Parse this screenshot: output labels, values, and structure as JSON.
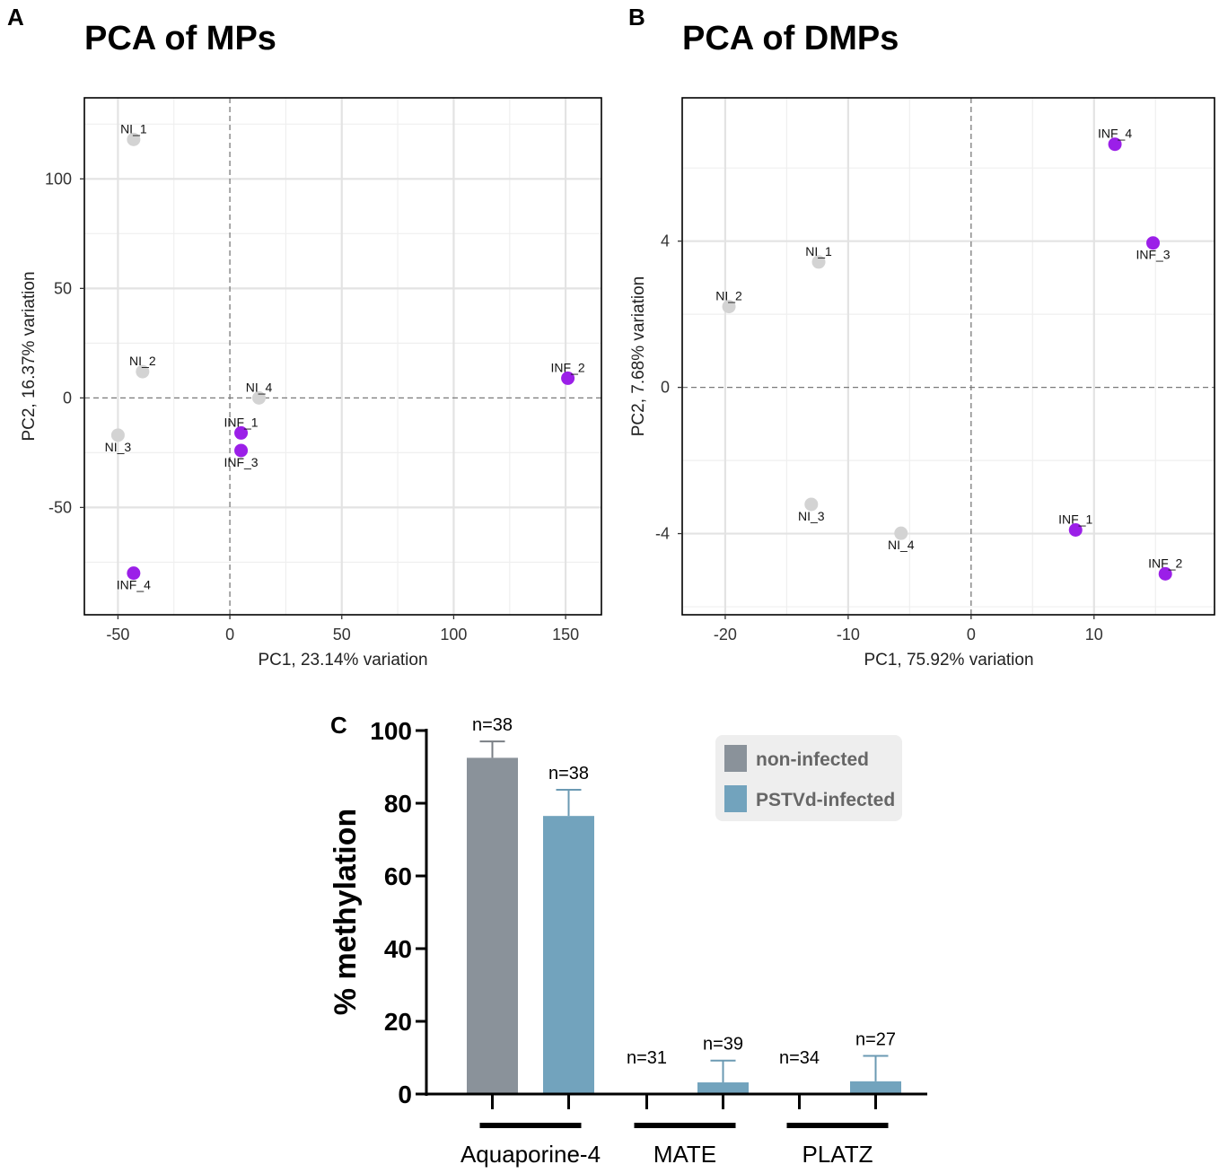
{
  "colors": {
    "non_infected_point": "#d3d3d3",
    "infected_point": "#9b1fe8",
    "non_infected_bar": "#8a929a",
    "infected_bar": "#72a3bd"
  },
  "chart_data": [
    {
      "panel": "A",
      "type": "scatter",
      "title": "PCA of MPs",
      "xlabel": "PC1, 23.14% variation",
      "ylabel": "PC2, 16.37% variation",
      "xlim": [
        -65,
        166
      ],
      "ylim": [
        -99,
        137
      ],
      "xticks": [
        -50,
        0,
        50,
        100,
        150
      ],
      "yticks": [
        -50,
        0,
        50,
        100
      ],
      "points": [
        {
          "label": "NI_1",
          "x": -43,
          "y": 118,
          "group": "non-infected",
          "label_pos": "above"
        },
        {
          "label": "NI_2",
          "x": -39,
          "y": 12,
          "group": "non-infected",
          "label_pos": "above"
        },
        {
          "label": "NI_3",
          "x": -50,
          "y": -17,
          "group": "non-infected",
          "label_pos": "below"
        },
        {
          "label": "NI_4",
          "x": 13,
          "y": 0,
          "group": "non-infected",
          "label_pos": "above"
        },
        {
          "label": "INF_1",
          "x": 5,
          "y": -16,
          "group": "infected",
          "label_pos": "above"
        },
        {
          "label": "INF_2",
          "x": 151,
          "y": 9,
          "group": "infected",
          "label_pos": "above"
        },
        {
          "label": "INF_3",
          "x": 5,
          "y": -24,
          "group": "infected",
          "label_pos": "below"
        },
        {
          "label": "INF_4",
          "x": -43,
          "y": -80,
          "group": "infected",
          "label_pos": "below"
        }
      ]
    },
    {
      "panel": "B",
      "type": "scatter",
      "title": "PCA of DMPs",
      "xlabel": "PC1, 75.92% variation",
      "ylabel": "PC2, 7.68% variation",
      "xlim": [
        -23.5,
        19.8
      ],
      "ylim": [
        -6.22,
        7.92
      ],
      "xticks": [
        -20,
        -10,
        0,
        10
      ],
      "yticks": [
        -4,
        0,
        4
      ],
      "points": [
        {
          "label": "NI_1",
          "x": -12.4,
          "y": 3.43,
          "group": "non-infected",
          "label_pos": "above"
        },
        {
          "label": "NI_2",
          "x": -19.7,
          "y": 2.21,
          "group": "non-infected",
          "label_pos": "above"
        },
        {
          "label": "NI_3",
          "x": -13.0,
          "y": -3.2,
          "group": "non-infected",
          "label_pos": "below"
        },
        {
          "label": "NI_4",
          "x": -5.7,
          "y": -3.99,
          "group": "non-infected",
          "label_pos": "below"
        },
        {
          "label": "INF_1",
          "x": 8.5,
          "y": -3.9,
          "group": "infected",
          "label_pos": "above"
        },
        {
          "label": "INF_2",
          "x": 15.8,
          "y": -5.1,
          "group": "infected",
          "label_pos": "above"
        },
        {
          "label": "INF_3",
          "x": 14.8,
          "y": 3.95,
          "group": "infected",
          "label_pos": "below"
        },
        {
          "label": "INF_4",
          "x": 11.7,
          "y": 6.65,
          "group": "infected",
          "label_pos": "above"
        }
      ]
    },
    {
      "panel": "C",
      "type": "bar",
      "ylabel": "% methylation",
      "ylim": [
        0,
        100
      ],
      "yticks": [
        0,
        20,
        40,
        60,
        80,
        100
      ],
      "categories": [
        "Aquaporine-4",
        "MATE",
        "PLATZ"
      ],
      "series": [
        {
          "name": "non-infected",
          "values": [
            92.5,
            0,
            0
          ],
          "errors": [
            4.5,
            0,
            0
          ],
          "n": [
            "n=38",
            "n=31",
            "n=34"
          ]
        },
        {
          "name": "PSTVd-infected",
          "values": [
            76.5,
            3.2,
            3.5
          ],
          "errors": [
            7.2,
            6.0,
            7.0
          ],
          "n": [
            "n=38",
            "n=39",
            "n=27"
          ]
        }
      ],
      "legend": [
        "non-infected",
        "PSTVd-infected"
      ],
      "legend_position": "top-right"
    }
  ]
}
